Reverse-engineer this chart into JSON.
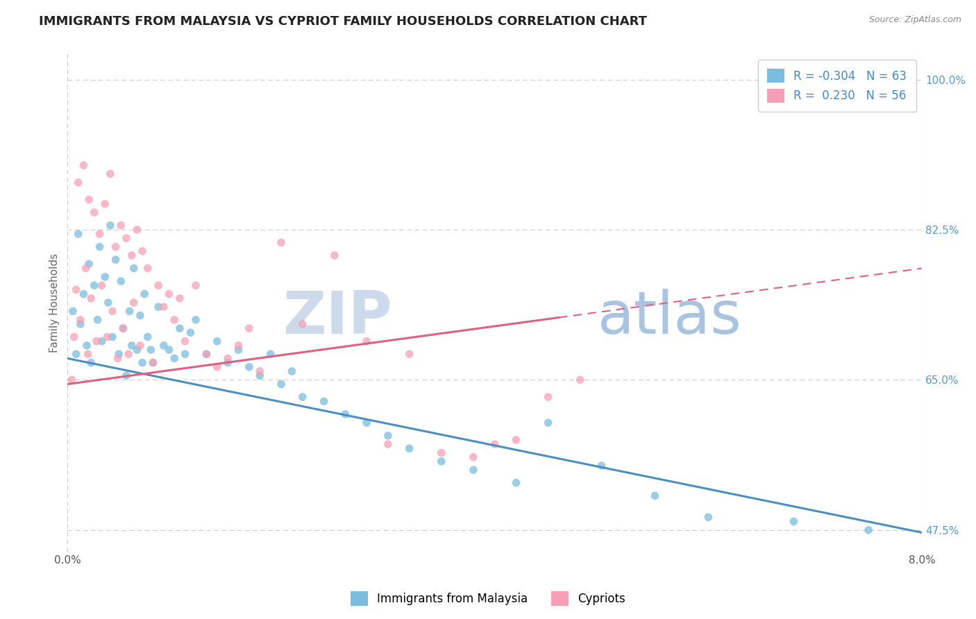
{
  "title": "IMMIGRANTS FROM MALAYSIA VS CYPRIOT FAMILY HOUSEHOLDS CORRELATION CHART",
  "source_text": "Source: ZipAtlas.com",
  "ylabel": "Family Households",
  "legend_label_1": "Immigrants from Malaysia",
  "legend_label_2": "Cypriots",
  "r1": -0.304,
  "n1": 63,
  "r2": 0.23,
  "n2": 56,
  "xlim": [
    0.0,
    8.0
  ],
  "ylim": [
    45.0,
    103.0
  ],
  "y_ticks": [
    47.5,
    65.0,
    82.5,
    100.0
  ],
  "y_tick_labels": [
    "47.5%",
    "65.0%",
    "82.5%",
    "100.0%"
  ],
  "color_blue": "#7bbde0",
  "color_pink": "#f5a0b5",
  "color_blue_line": "#4a8fc0",
  "color_pink_line": "#e06080",
  "watermark_zip_color": "#c8d8ec",
  "watermark_atlas_color": "#a8c8e8",
  "title_fontsize": 13,
  "axis_label_fontsize": 11,
  "tick_fontsize": 11,
  "legend_fontsize": 12,
  "blue_line_x0": 0.0,
  "blue_line_y0": 67.5,
  "blue_line_x1": 8.0,
  "blue_line_y1": 47.2,
  "pink_line_x0": 0.0,
  "pink_line_y0": 64.5,
  "pink_line_x1": 8.0,
  "pink_line_y1": 78.0,
  "pink_solid_xmax": 4.6,
  "scatter_blue_x": [
    0.05,
    0.08,
    0.1,
    0.12,
    0.15,
    0.18,
    0.2,
    0.22,
    0.25,
    0.28,
    0.3,
    0.32,
    0.35,
    0.38,
    0.4,
    0.42,
    0.45,
    0.48,
    0.5,
    0.52,
    0.55,
    0.58,
    0.6,
    0.62,
    0.65,
    0.68,
    0.7,
    0.72,
    0.75,
    0.78,
    0.8,
    0.85,
    0.9,
    0.95,
    1.0,
    1.05,
    1.1,
    1.15,
    1.2,
    1.3,
    1.4,
    1.5,
    1.6,
    1.7,
    1.8,
    1.9,
    2.0,
    2.1,
    2.2,
    2.4,
    2.6,
    2.8,
    3.0,
    3.2,
    3.5,
    3.8,
    4.2,
    4.5,
    5.0,
    5.5,
    6.0,
    6.8,
    7.5
  ],
  "scatter_blue_y": [
    73.0,
    68.0,
    82.0,
    71.5,
    75.0,
    69.0,
    78.5,
    67.0,
    76.0,
    72.0,
    80.5,
    69.5,
    77.0,
    74.0,
    83.0,
    70.0,
    79.0,
    68.0,
    76.5,
    71.0,
    65.5,
    73.0,
    69.0,
    78.0,
    68.5,
    72.5,
    67.0,
    75.0,
    70.0,
    68.5,
    67.0,
    73.5,
    69.0,
    68.5,
    67.5,
    71.0,
    68.0,
    70.5,
    72.0,
    68.0,
    69.5,
    67.0,
    68.5,
    66.5,
    65.5,
    68.0,
    64.5,
    66.0,
    63.0,
    62.5,
    61.0,
    60.0,
    58.5,
    57.0,
    55.5,
    54.5,
    53.0,
    60.0,
    55.0,
    51.5,
    49.0,
    48.5,
    47.5
  ],
  "scatter_pink_x": [
    0.04,
    0.06,
    0.08,
    0.1,
    0.12,
    0.15,
    0.17,
    0.19,
    0.2,
    0.22,
    0.25,
    0.27,
    0.3,
    0.32,
    0.35,
    0.37,
    0.4,
    0.42,
    0.45,
    0.47,
    0.5,
    0.52,
    0.55,
    0.57,
    0.6,
    0.62,
    0.65,
    0.68,
    0.7,
    0.75,
    0.8,
    0.85,
    0.9,
    0.95,
    1.0,
    1.05,
    1.1,
    1.2,
    1.3,
    1.4,
    1.5,
    1.6,
    1.7,
    1.8,
    2.0,
    2.2,
    2.5,
    2.8,
    3.0,
    3.2,
    3.5,
    3.8,
    4.0,
    4.2,
    4.5,
    4.8
  ],
  "scatter_pink_y": [
    65.0,
    70.0,
    75.5,
    88.0,
    72.0,
    90.0,
    78.0,
    68.0,
    86.0,
    74.5,
    84.5,
    69.5,
    82.0,
    76.0,
    85.5,
    70.0,
    89.0,
    73.0,
    80.5,
    67.5,
    83.0,
    71.0,
    81.5,
    68.0,
    79.5,
    74.0,
    82.5,
    69.0,
    80.0,
    78.0,
    67.0,
    76.0,
    73.5,
    75.0,
    72.0,
    74.5,
    69.5,
    76.0,
    68.0,
    66.5,
    67.5,
    69.0,
    71.0,
    66.0,
    81.0,
    71.5,
    79.5,
    69.5,
    57.5,
    68.0,
    56.5,
    56.0,
    57.5,
    58.0,
    63.0,
    65.0
  ]
}
